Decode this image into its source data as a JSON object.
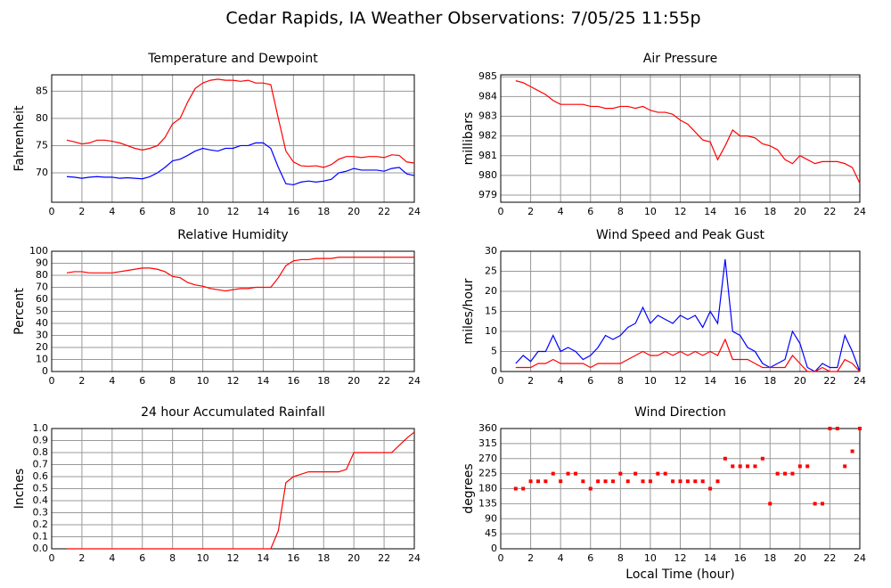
{
  "title": "Cedar Rapids, IA Weather Observations: 7/05/25 11:55p",
  "chart_data": [
    {
      "type": "line",
      "title": "Temperature and Dewpoint",
      "ylabel": "Fahrenheit",
      "x": [
        1,
        1.5,
        2,
        2.5,
        3,
        3.5,
        4,
        4.5,
        5,
        5.5,
        6,
        6.5,
        7,
        7.5,
        8,
        8.5,
        9,
        9.5,
        10,
        10.5,
        11,
        11.5,
        12,
        12.5,
        13,
        13.5,
        14,
        14.5,
        15,
        15.5,
        16,
        16.5,
        17,
        17.5,
        18,
        18.5,
        19,
        19.5,
        20,
        20.5,
        21,
        21.5,
        22,
        22.5,
        23,
        23.5,
        24
      ],
      "series": [
        {
          "color": "#ff0000",
          "values": [
            76,
            75.7,
            75.3,
            75.5,
            76,
            76,
            75.8,
            75.5,
            75,
            74.5,
            74.2,
            74.5,
            75,
            76.5,
            79,
            80,
            83,
            85.5,
            86.5,
            87,
            87.2,
            87,
            87,
            86.8,
            87,
            86.5,
            86.5,
            86.2,
            80,
            74,
            72,
            71.3,
            71.2,
            71.3,
            71,
            71.5,
            72.5,
            73,
            73,
            72.8,
            73,
            73,
            72.8,
            73.3,
            73.2,
            72,
            71.8
          ]
        },
        {
          "color": "#0000ff",
          "values": [
            69.3,
            69.2,
            69,
            69.2,
            69.3,
            69.2,
            69.2,
            69,
            69.1,
            69,
            68.9,
            69.3,
            70,
            71,
            72.2,
            72.5,
            73.2,
            74,
            74.5,
            74.2,
            74,
            74.5,
            74.5,
            75,
            75,
            75.5,
            75.5,
            74.5,
            71,
            68,
            67.8,
            68.3,
            68.5,
            68.3,
            68.5,
            68.8,
            70,
            70.3,
            70.8,
            70.5,
            70.5,
            70.5,
            70.3,
            70.8,
            71,
            69.8,
            69.5
          ]
        }
      ],
      "xlim": [
        0,
        24
      ],
      "xticks": [
        0,
        2,
        4,
        6,
        8,
        10,
        12,
        14,
        16,
        18,
        20,
        22,
        24
      ],
      "ylim": [
        64.6,
        88
      ],
      "yticks": [
        70,
        75,
        80,
        85
      ],
      "grid": true
    },
    {
      "type": "line",
      "title": "Air Pressure",
      "ylabel": "millibars",
      "x": [
        1,
        1.5,
        2,
        2.5,
        3,
        3.5,
        4,
        4.5,
        5,
        5.5,
        6,
        6.5,
        7,
        7.5,
        8,
        8.5,
        9,
        9.5,
        10,
        10.5,
        11,
        11.5,
        12,
        12.5,
        13,
        13.5,
        14,
        14.5,
        15,
        15.5,
        16,
        16.5,
        17,
        17.5,
        18,
        18.5,
        19,
        19.5,
        20,
        20.5,
        21,
        21.5,
        22,
        22.5,
        23,
        23.5,
        24
      ],
      "series": [
        {
          "color": "#ff0000",
          "values": [
            984.8,
            984.7,
            984.5,
            984.3,
            984.1,
            983.8,
            983.6,
            983.6,
            983.6,
            983.6,
            983.5,
            983.5,
            983.4,
            983.4,
            983.5,
            983.5,
            983.4,
            983.5,
            983.3,
            983.2,
            983.2,
            983.1,
            982.8,
            982.6,
            982.2,
            981.8,
            981.7,
            980.8,
            981.5,
            982.3,
            982,
            982,
            981.9,
            981.6,
            981.5,
            981.3,
            980.8,
            980.6,
            981,
            980.8,
            980.6,
            980.7,
            980.7,
            980.7,
            980.6,
            980.4,
            979.6
          ]
        }
      ],
      "xlim": [
        0,
        24
      ],
      "xticks": [
        0,
        2,
        4,
        6,
        8,
        10,
        12,
        14,
        16,
        18,
        20,
        22,
        24
      ],
      "ylim": [
        978.64,
        985.1
      ],
      "yticks": [
        979,
        980,
        981,
        982,
        983,
        984,
        985
      ],
      "grid": true
    },
    {
      "type": "line",
      "title": "Relative Humidity",
      "ylabel": "Percent",
      "x": [
        1,
        1.5,
        2,
        2.5,
        3,
        3.5,
        4,
        4.5,
        5,
        5.5,
        6,
        6.5,
        7,
        7.5,
        8,
        8.5,
        9,
        9.5,
        10,
        10.5,
        11,
        11.5,
        12,
        12.5,
        13,
        13.5,
        14,
        14.5,
        15,
        15.5,
        16,
        16.5,
        17,
        17.5,
        18,
        18.5,
        19,
        19.5,
        20,
        20.5,
        21,
        21.5,
        22,
        22.5,
        23,
        23.5,
        24
      ],
      "series": [
        {
          "color": "#ff0000",
          "values": [
            82,
            83,
            83,
            82,
            82,
            82,
            82,
            83,
            84,
            85,
            86,
            86,
            85,
            83,
            79,
            78,
            74,
            72,
            71,
            69,
            68,
            67,
            68,
            69,
            69,
            70,
            70,
            70,
            78,
            88,
            92,
            93,
            93,
            94,
            94,
            94,
            95,
            95,
            95,
            95,
            95,
            95,
            95,
            95,
            95,
            95,
            95
          ]
        }
      ],
      "xlim": [
        0,
        24
      ],
      "xticks": [
        0,
        2,
        4,
        6,
        8,
        10,
        12,
        14,
        16,
        18,
        20,
        22,
        24
      ],
      "ylim": [
        0,
        100
      ],
      "yticks": [
        0,
        10,
        20,
        30,
        40,
        50,
        60,
        70,
        80,
        90,
        100
      ],
      "grid": true
    },
    {
      "type": "line",
      "title": "Wind Speed and Peak Gust",
      "ylabel": "miles/hour",
      "x": [
        1,
        1.5,
        2,
        2.5,
        3,
        3.5,
        4,
        4.5,
        5,
        5.5,
        6,
        6.5,
        7,
        7.5,
        8,
        8.5,
        9,
        9.5,
        10,
        10.5,
        11,
        11.5,
        12,
        12.5,
        13,
        13.5,
        14,
        14.5,
        15,
        15.5,
        16,
        16.5,
        17,
        17.5,
        18,
        18.5,
        19,
        19.5,
        20,
        20.5,
        21,
        21.5,
        22,
        22.5,
        23,
        23.5,
        24
      ],
      "series": [
        {
          "color": "#0000ff",
          "values": [
            2,
            4,
            2.5,
            5,
            5,
            9,
            5,
            6,
            5,
            3,
            4,
            6,
            9,
            8,
            9,
            11,
            12,
            16,
            12,
            14,
            13,
            12,
            14,
            13,
            14,
            11,
            15,
            12,
            28,
            10,
            9,
            6,
            5,
            2,
            1,
            2,
            3,
            10,
            7,
            1,
            0,
            2,
            1,
            1,
            9,
            5,
            0
          ]
        },
        {
          "color": "#ff0000",
          "values": [
            1,
            1,
            1,
            2,
            2,
            3,
            2,
            2,
            2,
            2,
            1,
            2,
            2,
            2,
            2,
            3,
            4,
            5,
            4,
            4,
            5,
            4,
            5,
            4,
            5,
            4,
            5,
            4,
            8,
            3,
            3,
            3,
            2,
            1,
            1,
            1,
            1,
            4,
            2,
            0,
            0,
            1,
            0,
            0,
            3,
            2,
            0
          ]
        }
      ],
      "xlim": [
        0,
        24
      ],
      "xticks": [
        0,
        2,
        4,
        6,
        8,
        10,
        12,
        14,
        16,
        18,
        20,
        22,
        24
      ],
      "ylim": [
        0,
        30
      ],
      "yticks": [
        0,
        5,
        10,
        15,
        20,
        25,
        30
      ],
      "grid": true
    },
    {
      "type": "line",
      "title": "24 hour Accumulated Rainfall",
      "ylabel": "Inches",
      "x": [
        1,
        1.5,
        2,
        2.5,
        3,
        3.5,
        4,
        4.5,
        5,
        5.5,
        6,
        6.5,
        7,
        7.5,
        8,
        8.5,
        9,
        9.5,
        10,
        10.5,
        11,
        11.5,
        12,
        12.5,
        13,
        13.5,
        14,
        14.5,
        15,
        15.5,
        16,
        16.5,
        17,
        17.5,
        18,
        18.5,
        19,
        19.5,
        20,
        20.5,
        21,
        21.5,
        22,
        22.5,
        23,
        23.5,
        24
      ],
      "series": [
        {
          "color": "#ff0000",
          "values": [
            0,
            0,
            0,
            0,
            0,
            0,
            0,
            0,
            0,
            0,
            0,
            0,
            0,
            0,
            0,
            0,
            0,
            0,
            0,
            0,
            0,
            0,
            0,
            0,
            0,
            0,
            0,
            0,
            0.15,
            0.55,
            0.6,
            0.62,
            0.64,
            0.64,
            0.64,
            0.64,
            0.64,
            0.66,
            0.8,
            0.8,
            0.8,
            0.8,
            0.8,
            0.8,
            0.86,
            0.92,
            0.97
          ]
        }
      ],
      "xlim": [
        0,
        24
      ],
      "xticks": [
        0,
        2,
        4,
        6,
        8,
        10,
        12,
        14,
        16,
        18,
        20,
        22,
        24
      ],
      "ylim": [
        0,
        1
      ],
      "yticks": [
        {
          "value": 0,
          "label": "0.0"
        },
        0.1,
        0.2,
        0.3,
        0.4,
        0.5,
        0.6,
        0.7,
        0.8,
        0.9,
        {
          "value": 1,
          "label": "1.0"
        }
      ],
      "grid": true
    },
    {
      "type": "scatter",
      "title": "Wind Direction",
      "ylabel": "degrees",
      "xlabel": "Local Time (hour)",
      "x": [
        1,
        1.5,
        2,
        2.5,
        3,
        3.5,
        4,
        4.5,
        5,
        5.5,
        6,
        6.5,
        7,
        7.5,
        8,
        8.5,
        9,
        9.5,
        10,
        10.5,
        11,
        11.5,
        12,
        12.5,
        13,
        13.5,
        14,
        14.5,
        15,
        15.5,
        16,
        16.5,
        17,
        17.5,
        18,
        18.5,
        19,
        19.5,
        20,
        20.5,
        21,
        21.5,
        22,
        22.5,
        23,
        23.5,
        24
      ],
      "series": [
        {
          "color": "#ff0000",
          "values": [
            180,
            180,
            202,
            202,
            202,
            225,
            202,
            225,
            225,
            202,
            180,
            202,
            202,
            202,
            225,
            202,
            225,
            202,
            202,
            225,
            225,
            202,
            202,
            202,
            202,
            202,
            180,
            202,
            270,
            247,
            247,
            247,
            247,
            270,
            135,
            225,
            225,
            225,
            247,
            247,
            135,
            135,
            360,
            360,
            247,
            292,
            360
          ]
        }
      ],
      "xlim": [
        0,
        24
      ],
      "xticks": [
        0,
        2,
        4,
        6,
        8,
        10,
        12,
        14,
        16,
        18,
        20,
        22,
        24
      ],
      "ylim": [
        0,
        360
      ],
      "yticks": [
        0,
        45,
        90,
        135,
        180,
        225,
        270,
        315,
        360
      ],
      "grid": true
    }
  ]
}
